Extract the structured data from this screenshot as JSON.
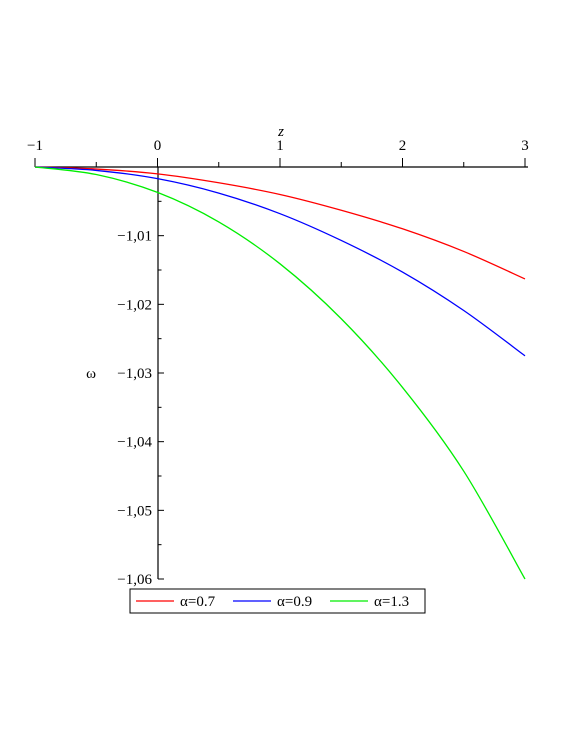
{
  "chart_data": {
    "type": "line",
    "title": "",
    "xlabel": "z",
    "ylabel": "ω",
    "xlim": [
      -1,
      3
    ],
    "ylim": [
      -1.06,
      -1.0
    ],
    "x_ticks": [
      -1,
      0,
      1,
      2,
      3
    ],
    "x_tick_labels": [
      "−1",
      "0",
      "1",
      "2",
      "3"
    ],
    "y_ticks": [
      -1.01,
      -1.02,
      -1.03,
      -1.04,
      -1.05,
      -1.06
    ],
    "y_tick_labels": [
      "−1,01",
      "−1,02",
      "−1,03",
      "−1,04",
      "−1,05",
      "−1,06"
    ],
    "grid": false,
    "legend_position": "bottom",
    "x": [
      -1,
      -0.5,
      0,
      0.5,
      1,
      1.5,
      2,
      2.5,
      3
    ],
    "series": [
      {
        "name": "α=0.7",
        "color": "#ff0000",
        "values": [
          -1.0,
          -1.0003,
          -1.001,
          -1.0023,
          -1.004,
          -1.0063,
          -1.009,
          -1.0123,
          -1.0163
        ]
      },
      {
        "name": "α=0.9",
        "color": "#0000ff",
        "values": [
          -1.0,
          -1.0005,
          -1.0017,
          -1.0038,
          -1.0068,
          -1.0107,
          -1.0153,
          -1.0209,
          -1.0275
        ]
      },
      {
        "name": "α=1.3",
        "color": "#00ee00",
        "values": [
          -1.0,
          -1.0011,
          -1.0037,
          -1.008,
          -1.0141,
          -1.0221,
          -1.0321,
          -1.0443,
          -1.06
        ]
      }
    ]
  }
}
